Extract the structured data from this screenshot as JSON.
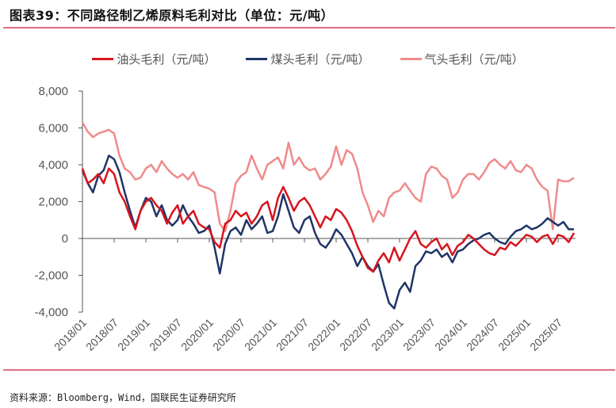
{
  "title": "图表39：不同路径制乙烯原料毛利对比（单位：元/吨）",
  "source": "资料来源：Bloomberg，Wind，国联民生证券研究所",
  "chart_data": {
    "type": "line",
    "title": "不同路径制乙烯原料毛利对比（单位：元/吨）",
    "xlabel": "",
    "ylabel": "",
    "ylim": [
      -4000,
      8000
    ],
    "yticks": [
      8000,
      6000,
      4000,
      2000,
      0,
      -2000,
      -4000
    ],
    "ytick_labels": [
      "8,000",
      "6,000",
      "4,000",
      "2,000",
      "0",
      "-2,000",
      "-4,000"
    ],
    "x_start": "2018/01",
    "x_frequency": "monthly",
    "xtick_labels": [
      "2018/01",
      "2018/07",
      "2019/01",
      "2019/07",
      "2020/01",
      "2020/07",
      "2021/01",
      "2021/07",
      "2022/01",
      "2022/07",
      "2023/01",
      "2023/07",
      "2024/01",
      "2024/07",
      "2025/01",
      "2025/07"
    ],
    "legend_position": "top",
    "series": [
      {
        "name": "油头毛利（元/吨）",
        "color": "#d7141e",
        "values": [
          3800,
          3000,
          3200,
          3500,
          3000,
          3800,
          3500,
          2500,
          2000,
          1200,
          500,
          1500,
          2000,
          2200,
          1800,
          1500,
          800,
          1400,
          1800,
          800,
          1200,
          1500,
          800,
          600,
          500,
          -200,
          -500,
          800,
          1000,
          1500,
          1200,
          1400,
          800,
          1200,
          1800,
          2000,
          1000,
          2200,
          2800,
          2200,
          1500,
          2000,
          2200,
          1800,
          1200,
          600,
          1200,
          1000,
          1600,
          1400,
          1000,
          400,
          -400,
          -1000,
          -1600,
          -1800,
          -1200,
          -800,
          -1300,
          -500,
          -1200,
          -600,
          0,
          400,
          -300,
          -500,
          -200,
          0,
          -600,
          -300,
          -900,
          -400,
          -200,
          200,
          0,
          -300,
          -600,
          -800,
          -900,
          -500,
          -600,
          -200,
          -400,
          -100,
          200,
          100,
          -200,
          100,
          200,
          -300,
          200,
          100,
          -200,
          300
        ]
      },
      {
        "name": "煤头毛利（元/吨）",
        "color": "#1f3566",
        "values": [
          3700,
          3000,
          2500,
          3400,
          3700,
          4500,
          4300,
          3600,
          2500,
          1500,
          600,
          1500,
          2200,
          2000,
          1200,
          1800,
          1000,
          700,
          1000,
          1800,
          1200,
          800,
          300,
          400,
          700,
          -500,
          -1900,
          -300,
          400,
          600,
          200,
          1000,
          500,
          800,
          1200,
          300,
          400,
          1200,
          2400,
          1500,
          600,
          300,
          1000,
          1200,
          300,
          -300,
          -500,
          -100,
          500,
          200,
          -300,
          -800,
          -1500,
          -1000,
          -1500,
          -1800,
          -1400,
          -2500,
          -3500,
          -3800,
          -2800,
          -2400,
          -2900,
          -1500,
          -1200,
          -700,
          -800,
          -600,
          -1000,
          -800,
          -1300,
          -700,
          -600,
          -300,
          -100,
          0,
          200,
          300,
          0,
          -200,
          -300,
          100,
          400,
          500,
          700,
          500,
          600,
          800,
          1100,
          900,
          700,
          900,
          500,
          500
        ]
      },
      {
        "name": "气头毛利（元/吨）",
        "color": "#f08a8c",
        "values": [
          6300,
          5800,
          5500,
          5700,
          5800,
          5900,
          5700,
          4500,
          3800,
          3600,
          3200,
          3300,
          3800,
          4000,
          3600,
          4200,
          3800,
          3500,
          3300,
          3500,
          3200,
          3600,
          2900,
          2800,
          2700,
          2500,
          800,
          400,
          1500,
          3000,
          3400,
          3600,
          4500,
          3800,
          3200,
          4000,
          4200,
          4400,
          3800,
          5200,
          4000,
          4400,
          3900,
          3700,
          3800,
          3200,
          3500,
          3900,
          5000,
          4000,
          4800,
          4600,
          3800,
          2500,
          1800,
          900,
          1500,
          1200,
          2200,
          2500,
          2600,
          3000,
          2600,
          2200,
          2000,
          3500,
          3900,
          3800,
          3400,
          3200,
          2200,
          2500,
          3200,
          3500,
          3500,
          3200,
          3600,
          4100,
          4300,
          4000,
          3800,
          4200,
          3700,
          3600,
          4000,
          3800,
          3200,
          2800,
          2600,
          500,
          3200,
          3100,
          3100,
          3300
        ]
      }
    ]
  }
}
